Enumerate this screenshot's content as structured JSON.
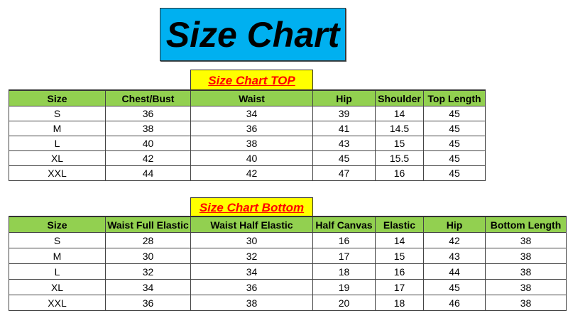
{
  "title": "Size Chart",
  "top": {
    "label": "Size Chart TOP",
    "headers": [
      "Size",
      "Chest/Bust",
      "Waist",
      "Hip",
      "Shoulder",
      "Top Length"
    ],
    "rows": [
      [
        "S",
        "36",
        "34",
        "39",
        "14",
        "45"
      ],
      [
        "M",
        "38",
        "36",
        "41",
        "14.5",
        "45"
      ],
      [
        "L",
        "40",
        "38",
        "43",
        "15",
        "45"
      ],
      [
        "XL",
        "42",
        "40",
        "45",
        "15.5",
        "45"
      ],
      [
        "XXL",
        "44",
        "42",
        "47",
        "16",
        "45"
      ]
    ]
  },
  "bottom": {
    "label": "Size Chart Bottom",
    "headers": [
      "Size",
      "Waist Full Elastic",
      "Waist Half Elastic",
      "Half Canvas",
      "Elastic",
      "Hip",
      "Bottom Length"
    ],
    "rows": [
      [
        "S",
        "28",
        "30",
        "16",
        "14",
        "42",
        "38"
      ],
      [
        "M",
        "30",
        "32",
        "17",
        "15",
        "43",
        "38"
      ],
      [
        "L",
        "32",
        "34",
        "18",
        "16",
        "44",
        "38"
      ],
      [
        "XL",
        "34",
        "36",
        "19",
        "17",
        "45",
        "38"
      ],
      [
        "XXL",
        "36",
        "38",
        "20",
        "18",
        "46",
        "38"
      ]
    ]
  },
  "colors": {
    "title_bg": "#00b0f0",
    "label_bg": "#ffff00",
    "label_text": "#ff0000",
    "header_bg": "#92d050"
  }
}
